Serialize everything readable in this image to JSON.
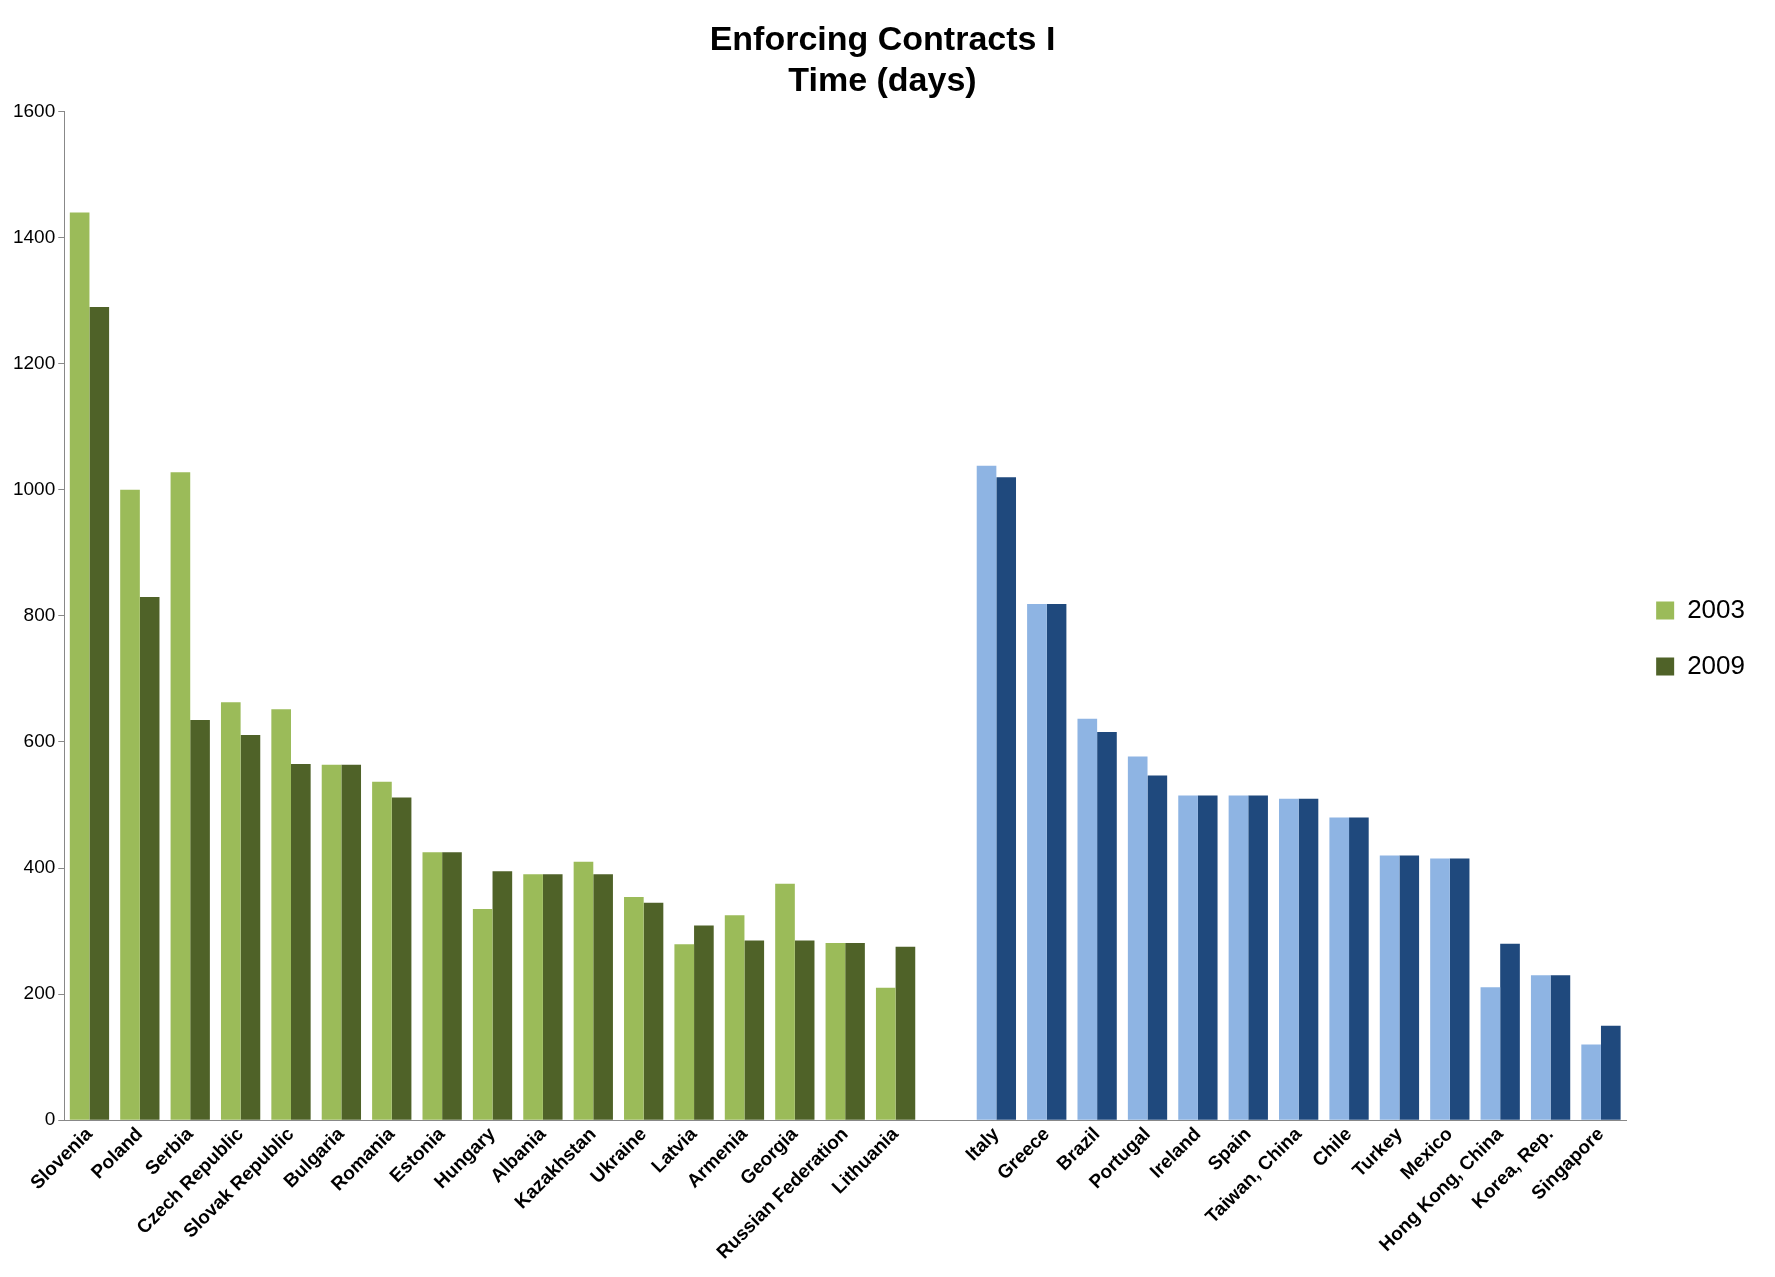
{
  "chart_data": {
    "type": "bar",
    "title": "Enforcing Contracts I\nTime (days)",
    "categories": [
      "Slovenia",
      "Poland",
      "Serbia",
      "Czech Republic",
      "Slovak Republic",
      "Bulgaria",
      "Romania",
      "Estonia",
      "Hungary",
      "Albania",
      "Kazakhstan",
      "Ukraine",
      "Latvia",
      "Armenia",
      "Georgia",
      "Russian Federation",
      "Lithuania",
      null,
      "Italy",
      "Greece",
      "Brazil",
      "Portugal",
      "Ireland",
      "Spain",
      "Taiwan, China",
      "Chile",
      "Turkey",
      "Mexico",
      "Hong Kong, China",
      "Korea, Rep.",
      "Singapore"
    ],
    "series": [
      {
        "name": "2003",
        "color": "#9bbb59",
        "colors": [
          "#9bbb59",
          "#9bbb59",
          "#9bbb59",
          "#9bbb59",
          "#9bbb59",
          "#9bbb59",
          "#9bbb59",
          "#9bbb59",
          "#9bbb59",
          "#9bbb59",
          "#9bbb59",
          "#9bbb59",
          "#9bbb59",
          "#9bbb59",
          "#9bbb59",
          "#9bbb59",
          "#9bbb59",
          "#9bbb59",
          "#8eb4e3",
          "#8eb4e3",
          "#8eb4e3",
          "#8eb4e3",
          "#8eb4e3",
          "#8eb4e3",
          "#8eb4e3",
          "#8eb4e3",
          "#8eb4e3",
          "#8eb4e3",
          "#8eb4e3",
          "#8eb4e3",
          "#8eb4e3"
        ],
        "values": [
          1440,
          1000,
          1028,
          663,
          652,
          564,
          537,
          425,
          335,
          390,
          410,
          354,
          279,
          325,
          375,
          281,
          210,
          null,
          1038,
          819,
          637,
          577,
          515,
          515,
          510,
          480,
          420,
          415,
          211,
          230,
          120
        ]
      },
      {
        "name": "2009",
        "color": "#4f6228",
        "colors": [
          "#4f6228",
          "#4f6228",
          "#4f6228",
          "#4f6228",
          "#4f6228",
          "#4f6228",
          "#4f6228",
          "#4f6228",
          "#4f6228",
          "#4f6228",
          "#4f6228",
          "#4f6228",
          "#4f6228",
          "#4f6228",
          "#4f6228",
          "#4f6228",
          "#4f6228",
          "#4f6228",
          "#1f497d",
          "#1f497d",
          "#1f497d",
          "#1f497d",
          "#1f497d",
          "#1f497d",
          "#1f497d",
          "#1f497d",
          "#1f497d",
          "#1f497d",
          "#1f497d",
          "#1f497d",
          "#1f497d"
        ],
        "values": [
          1290,
          830,
          635,
          611,
          565,
          564,
          512,
          425,
          395,
          390,
          390,
          345,
          309,
          285,
          285,
          281,
          275,
          null,
          1020,
          819,
          616,
          547,
          515,
          515,
          510,
          480,
          420,
          415,
          280,
          230,
          150
        ]
      }
    ],
    "ylim": [
      0,
      1600
    ],
    "yticks": [
      0,
      200,
      400,
      600,
      800,
      1000,
      1200,
      1400,
      1600
    ],
    "grid": false,
    "legend": "right"
  }
}
